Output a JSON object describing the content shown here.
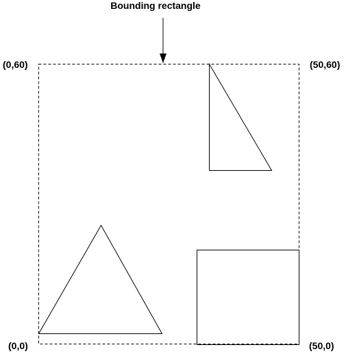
{
  "diagram": {
    "title": "Bounding rectangle",
    "corners": {
      "top_left": "(0,60)",
      "top_right": "(50,60)",
      "bottom_left": "(0,0)",
      "bottom_right": "(50,0)"
    },
    "shapes": [
      "right-triangle",
      "isosceles-triangle",
      "square"
    ],
    "colors": {
      "stroke": "#000000",
      "background": "#ffffff"
    }
  }
}
